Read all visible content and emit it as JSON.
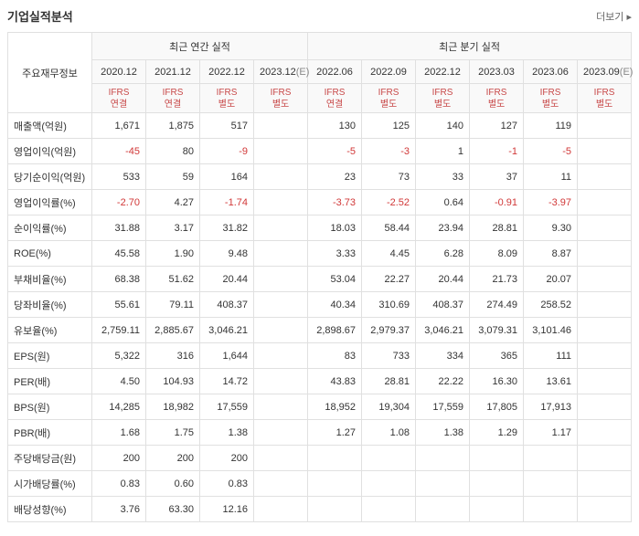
{
  "title": "기업실적분석",
  "more": "더보기 ▸",
  "group_annual": "최근 연간 실적",
  "group_quarter": "최근 분기 실적",
  "label_header": "주요재무정보",
  "periods": [
    "2020.12",
    "2021.12",
    "2022.12",
    "2023.12(E)",
    "2022.06",
    "2022.09",
    "2022.12",
    "2023.03",
    "2023.06",
    "2023.09(E)"
  ],
  "estimate_cols": [
    3,
    9
  ],
  "ifrs_labels": [
    "IFRS\n연결",
    "IFRS\n연결",
    "IFRS\n별도",
    "IFRS\n별도",
    "IFRS\n연결",
    "IFRS\n별도",
    "IFRS\n별도",
    "IFRS\n별도",
    "IFRS\n별도",
    "IFRS\n별도"
  ],
  "rows": [
    {
      "label": "매출액(억원)",
      "vals": [
        "1,671",
        "1,875",
        "517",
        "",
        "130",
        "125",
        "140",
        "127",
        "119",
        ""
      ]
    },
    {
      "label": "영업이익(억원)",
      "vals": [
        "-45",
        "80",
        "-9",
        "",
        "-5",
        "-3",
        "1",
        "-1",
        "-5",
        ""
      ]
    },
    {
      "label": "당기순이익(억원)",
      "vals": [
        "533",
        "59",
        "164",
        "",
        "23",
        "73",
        "33",
        "37",
        "11",
        ""
      ]
    },
    {
      "label": "영업이익률(%)",
      "vals": [
        "-2.70",
        "4.27",
        "-1.74",
        "",
        "-3.73",
        "-2.52",
        "0.64",
        "-0.91",
        "-3.97",
        ""
      ]
    },
    {
      "label": "순이익률(%)",
      "vals": [
        "31.88",
        "3.17",
        "31.82",
        "",
        "18.03",
        "58.44",
        "23.94",
        "28.81",
        "9.30",
        ""
      ]
    },
    {
      "label": "ROE(%)",
      "vals": [
        "45.58",
        "1.90",
        "9.48",
        "",
        "3.33",
        "4.45",
        "6.28",
        "8.09",
        "8.87",
        ""
      ]
    },
    {
      "label": "부채비율(%)",
      "vals": [
        "68.38",
        "51.62",
        "20.44",
        "",
        "53.04",
        "22.27",
        "20.44",
        "21.73",
        "20.07",
        ""
      ]
    },
    {
      "label": "당좌비율(%)",
      "vals": [
        "55.61",
        "79.11",
        "408.37",
        "",
        "40.34",
        "310.69",
        "408.37",
        "274.49",
        "258.52",
        ""
      ]
    },
    {
      "label": "유보율(%)",
      "vals": [
        "2,759.11",
        "2,885.67",
        "3,046.21",
        "",
        "2,898.67",
        "2,979.37",
        "3,046.21",
        "3,079.31",
        "3,101.46",
        ""
      ]
    },
    {
      "label": "EPS(원)",
      "vals": [
        "5,322",
        "316",
        "1,644",
        "",
        "83",
        "733",
        "334",
        "365",
        "111",
        ""
      ]
    },
    {
      "label": "PER(배)",
      "vals": [
        "4.50",
        "104.93",
        "14.72",
        "",
        "43.83",
        "28.81",
        "22.22",
        "16.30",
        "13.61",
        ""
      ]
    },
    {
      "label": "BPS(원)",
      "vals": [
        "14,285",
        "18,982",
        "17,559",
        "",
        "18,952",
        "19,304",
        "17,559",
        "17,805",
        "17,913",
        ""
      ]
    },
    {
      "label": "PBR(배)",
      "vals": [
        "1.68",
        "1.75",
        "1.38",
        "",
        "1.27",
        "1.08",
        "1.38",
        "1.29",
        "1.17",
        ""
      ]
    },
    {
      "label": "주당배당금(원)",
      "vals": [
        "200",
        "200",
        "200",
        "",
        "",
        "",
        "",
        "",
        "",
        ""
      ]
    },
    {
      "label": "시가배당률(%)",
      "vals": [
        "0.83",
        "0.60",
        "0.83",
        "",
        "",
        "",
        "",
        "",
        "",
        ""
      ]
    },
    {
      "label": "배당성향(%)",
      "vals": [
        "3.76",
        "63.30",
        "12.16",
        "",
        "",
        "",
        "",
        "",
        "",
        ""
      ]
    }
  ]
}
